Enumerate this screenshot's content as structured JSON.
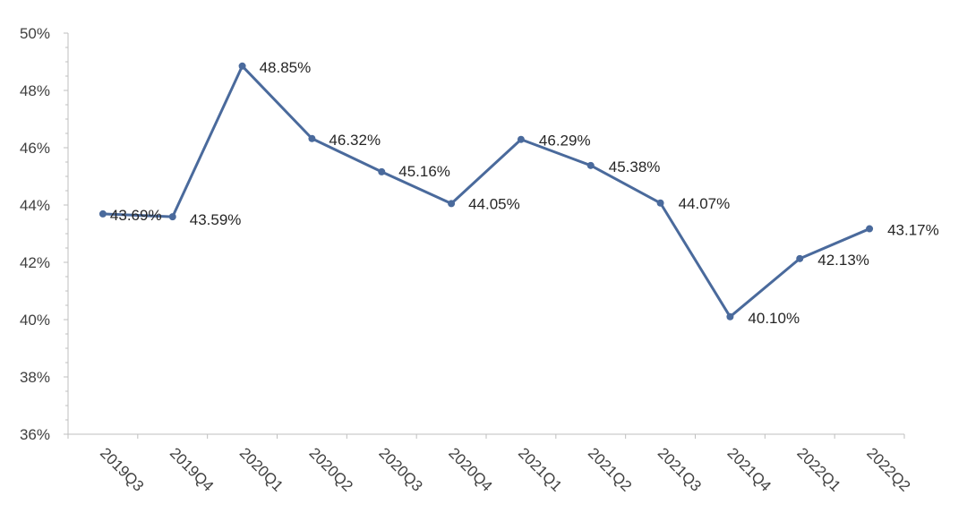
{
  "chart_data": {
    "type": "line",
    "title": "",
    "xlabel": "",
    "ylabel": "",
    "categories": [
      "2019Q3",
      "2019Q4",
      "2020Q1",
      "2020Q2",
      "2020Q3",
      "2020Q4",
      "2021Q1",
      "2021Q2",
      "2021Q3",
      "2021Q4",
      "2022Q1",
      "2022Q2"
    ],
    "series": [
      {
        "values": [
          43.69,
          43.59,
          48.85,
          46.32,
          45.16,
          44.05,
          46.29,
          45.38,
          44.07,
          40.1,
          42.13,
          43.17
        ],
        "labels": [
          "43.69%",
          "43.59%",
          "48.85%",
          "46.32%",
          "45.16%",
          "44.05%",
          "46.29%",
          "45.38%",
          "44.07%",
          "40.10%",
          "42.13%",
          "43.17%"
        ],
        "color": "#4a6a9c"
      }
    ],
    "ylim": [
      36,
      50
    ],
    "yticks": [
      36,
      38,
      40,
      42,
      44,
      46,
      48,
      50
    ],
    "ytick_labels": [
      "36%",
      "38%",
      "40%",
      "42%",
      "44%",
      "46%",
      "48%",
      "50%"
    ],
    "grid": false,
    "legend": "none"
  }
}
